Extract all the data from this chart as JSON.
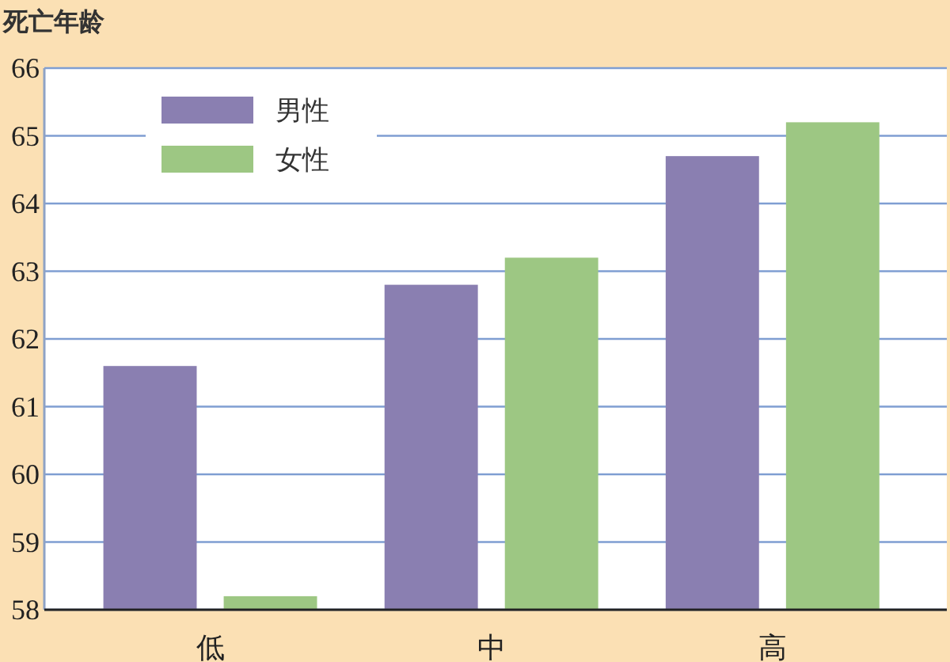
{
  "chart_data": {
    "type": "bar",
    "ylabel": "死亡年龄",
    "categories": [
      "低",
      "中",
      "高"
    ],
    "series": [
      {
        "name": "男性",
        "color": "#8a7fb1",
        "values": [
          61.6,
          62.8,
          64.7
        ]
      },
      {
        "name": "女性",
        "color": "#9dc783",
        "values": [
          58.2,
          63.2,
          65.2
        ]
      }
    ],
    "ylim": [
      58,
      66
    ],
    "yticks": [
      58,
      59,
      60,
      61,
      62,
      63,
      64,
      65,
      66
    ],
    "grid": "y",
    "legend": "top left"
  }
}
